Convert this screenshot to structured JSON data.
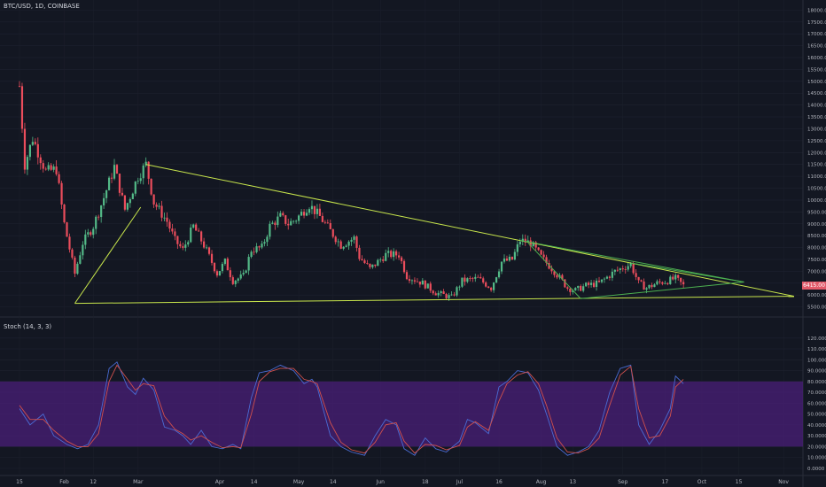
{
  "header": {
    "symbol": "BTC/USD, 1D, COINBASE"
  },
  "price_tag": "6415.00",
  "stoch_panel": {
    "title": "Stoch (14, 3, 3)"
  },
  "colors": {
    "background": "#131722",
    "up": "#53b987",
    "down": "#eb4d5c",
    "trendline": "#c8e64c",
    "trendline_green": "#4caf50",
    "band": "#4a1f78",
    "k_line": "#4a6cd4",
    "d_line": "#d0504d"
  },
  "chart_data": [
    {
      "type": "candlestick",
      "title": "BTC/USD, 1D, COINBASE",
      "y_ticks": [
        "18000.00",
        "17500.00",
        "17000.00",
        "16500.00",
        "16000.00",
        "15500.00",
        "15000.00",
        "14500.00",
        "14000.00",
        "13500.00",
        "13000.00",
        "12500.00",
        "12000.00",
        "11500.00",
        "11000.00",
        "10500.00",
        "10000.00",
        "9500.00",
        "9000.00",
        "8500.00",
        "8000.00",
        "7500.00",
        "7000.00",
        "6500.00",
        "6000.00",
        "5500.00"
      ],
      "ylim": [
        5300,
        18200
      ],
      "x_ticks": [
        "15",
        "Feb",
        "12",
        "Mar",
        "Apr",
        "14",
        "May",
        "14",
        "Jun",
        "18",
        "Jul",
        "16",
        "Aug",
        "13",
        "Sep",
        "17",
        "Oct",
        "15",
        "Nov"
      ],
      "close_path": [
        [
          "2018-01-15",
          14800
        ],
        [
          "2018-01-17",
          11500
        ],
        [
          "2018-01-20",
          12600
        ],
        [
          "2018-01-25",
          11200
        ],
        [
          "2018-01-29",
          11300
        ],
        [
          "2018-02-01",
          9000
        ],
        [
          "2018-02-05",
          6900
        ],
        [
          "2018-02-08",
          8200
        ],
        [
          "2018-02-12",
          8900
        ],
        [
          "2018-02-16",
          10100
        ],
        [
          "2018-02-20",
          11400
        ],
        [
          "2018-02-24",
          9600
        ],
        [
          "2018-03-01",
          11000
        ],
        [
          "2018-03-04",
          11500
        ],
        [
          "2018-03-07",
          9900
        ],
        [
          "2018-03-12",
          9100
        ],
        [
          "2018-03-15",
          8300
        ],
        [
          "2018-03-18",
          7900
        ],
        [
          "2018-03-22",
          8900
        ],
        [
          "2018-03-26",
          8100
        ],
        [
          "2018-03-31",
          6900
        ],
        [
          "2018-04-03",
          7400
        ],
        [
          "2018-04-06",
          6600
        ],
        [
          "2018-04-10",
          6800
        ],
        [
          "2018-04-13",
          7900
        ],
        [
          "2018-04-17",
          8000
        ],
        [
          "2018-04-20",
          8900
        ],
        [
          "2018-04-24",
          9300
        ],
        [
          "2018-04-27",
          9000
        ],
        [
          "2018-04-30",
          9200
        ],
        [
          "2018-05-05",
          9800
        ],
        [
          "2018-05-09",
          9300
        ],
        [
          "2018-05-13",
          8700
        ],
        [
          "2018-05-17",
          8100
        ],
        [
          "2018-05-22",
          8400
        ],
        [
          "2018-05-24",
          7600
        ],
        [
          "2018-05-28",
          7100
        ],
        [
          "2018-06-03",
          7700
        ],
        [
          "2018-06-08",
          7700
        ],
        [
          "2018-06-11",
          6800
        ],
        [
          "2018-06-17",
          6500
        ],
        [
          "2018-06-22",
          6100
        ],
        [
          "2018-06-28",
          5900
        ],
        [
          "2018-07-02",
          6600
        ],
        [
          "2018-07-08",
          6700
        ],
        [
          "2018-07-13",
          6300
        ],
        [
          "2018-07-17",
          7400
        ],
        [
          "2018-07-21",
          7500
        ],
        [
          "2018-07-24",
          8300
        ],
        [
          "2018-07-28",
          8200
        ],
        [
          "2018-08-01",
          7600
        ],
        [
          "2018-08-06",
          7000
        ],
        [
          "2018-08-11",
          6300
        ],
        [
          "2018-08-14",
          6200
        ],
        [
          "2018-08-18",
          6400
        ],
        [
          "2018-08-23",
          6500
        ],
        [
          "2018-08-29",
          7000
        ],
        [
          "2018-09-04",
          7300
        ],
        [
          "2018-09-07",
          6500
        ],
        [
          "2018-09-10",
          6300
        ],
        [
          "2018-09-14",
          6500
        ],
        [
          "2018-09-18",
          6600
        ],
        [
          "2018-09-21",
          6700
        ],
        [
          "2018-09-23",
          6500
        ],
        [
          "2018-09-24",
          6400
        ]
      ],
      "trendlines": [
        {
          "from": [
            "2018-02-05",
            5650
          ],
          "to": [
            "2018-11-05",
            5950
          ]
        },
        {
          "from": [
            "2018-02-05",
            5650
          ],
          "to": [
            "2018-03-02",
            9700
          ]
        },
        {
          "from": [
            "2018-03-04",
            11500
          ],
          "to": [
            "2018-11-05",
            5950
          ]
        },
        {
          "from": [
            "2018-07-24",
            8300
          ],
          "to": [
            "2018-10-17",
            6550
          ]
        },
        {
          "from": [
            "2018-09-04",
            7350
          ],
          "to": [
            "2018-10-17",
            6550
          ]
        },
        {
          "from": [
            "2018-08-16",
            5850
          ],
          "to": [
            "2018-10-17",
            6550
          ]
        },
        {
          "from": [
            "2018-07-27",
            8200
          ],
          "to": [
            "2018-08-16",
            5850
          ]
        }
      ]
    },
    {
      "type": "line",
      "title": "Stoch (14, 3, 3)",
      "y_ticks": [
        "120.0000",
        "110.0000",
        "100.0000",
        "90.0000",
        "80.0000",
        "70.0000",
        "60.0000",
        "50.0000",
        "40.0000",
        "30.0000",
        "20.0000",
        "10.0000",
        "0.0000"
      ],
      "ylim": [
        -5,
        128
      ],
      "band": [
        20,
        80
      ],
      "series": [
        {
          "key": "k",
          "values": [
            [
              "2018-01-15",
              55
            ],
            [
              "2018-01-19",
              40
            ],
            [
              "2018-01-24",
              50
            ],
            [
              "2018-01-28",
              30
            ],
            [
              "2018-02-02",
              22
            ],
            [
              "2018-02-06",
              18
            ],
            [
              "2018-02-10",
              22
            ],
            [
              "2018-02-14",
              40
            ],
            [
              "2018-02-18",
              92
            ],
            [
              "2018-02-21",
              98
            ],
            [
              "2018-02-25",
              75
            ],
            [
              "2018-02-28",
              68
            ],
            [
              "2018-03-03",
              83
            ],
            [
              "2018-03-07",
              72
            ],
            [
              "2018-03-11",
              38
            ],
            [
              "2018-03-15",
              35
            ],
            [
              "2018-03-18",
              30
            ],
            [
              "2018-03-21",
              22
            ],
            [
              "2018-03-25",
              35
            ],
            [
              "2018-03-29",
              20
            ],
            [
              "2018-04-02",
              18
            ],
            [
              "2018-04-06",
              22
            ],
            [
              "2018-04-09",
              18
            ],
            [
              "2018-04-13",
              65
            ],
            [
              "2018-04-16",
              88
            ],
            [
              "2018-04-20",
              90
            ],
            [
              "2018-04-24",
              95
            ],
            [
              "2018-04-29",
              90
            ],
            [
              "2018-05-03",
              78
            ],
            [
              "2018-05-06",
              82
            ],
            [
              "2018-05-08",
              75
            ],
            [
              "2018-05-13",
              30
            ],
            [
              "2018-05-17",
              20
            ],
            [
              "2018-05-21",
              15
            ],
            [
              "2018-05-26",
              12
            ],
            [
              "2018-05-30",
              30
            ],
            [
              "2018-06-03",
              45
            ],
            [
              "2018-06-07",
              40
            ],
            [
              "2018-06-10",
              18
            ],
            [
              "2018-06-14",
              12
            ],
            [
              "2018-06-18",
              28
            ],
            [
              "2018-06-22",
              18
            ],
            [
              "2018-06-26",
              15
            ],
            [
              "2018-07-01",
              25
            ],
            [
              "2018-07-04",
              45
            ],
            [
              "2018-07-07",
              42
            ],
            [
              "2018-07-12",
              32
            ],
            [
              "2018-07-16",
              75
            ],
            [
              "2018-07-19",
              80
            ],
            [
              "2018-07-23",
              90
            ],
            [
              "2018-07-27",
              88
            ],
            [
              "2018-07-31",
              72
            ],
            [
              "2018-08-03",
              50
            ],
            [
              "2018-08-07",
              20
            ],
            [
              "2018-08-11",
              12
            ],
            [
              "2018-08-15",
              15
            ],
            [
              "2018-08-19",
              20
            ],
            [
              "2018-08-23",
              35
            ],
            [
              "2018-08-27",
              70
            ],
            [
              "2018-08-31",
              92
            ],
            [
              "2018-09-04",
              95
            ],
            [
              "2018-09-07",
              40
            ],
            [
              "2018-09-11",
              22
            ],
            [
              "2018-09-15",
              35
            ],
            [
              "2018-09-19",
              55
            ],
            [
              "2018-09-21",
              85
            ],
            [
              "2018-09-24",
              78
            ]
          ]
        },
        {
          "key": "d",
          "values": [
            [
              "2018-01-15",
              58
            ],
            [
              "2018-01-19",
              45
            ],
            [
              "2018-01-24",
              45
            ],
            [
              "2018-01-28",
              35
            ],
            [
              "2018-02-02",
              25
            ],
            [
              "2018-02-06",
              20
            ],
            [
              "2018-02-10",
              20
            ],
            [
              "2018-02-14",
              32
            ],
            [
              "2018-02-18",
              80
            ],
            [
              "2018-02-21",
              95
            ],
            [
              "2018-02-25",
              82
            ],
            [
              "2018-02-28",
              72
            ],
            [
              "2018-03-03",
              78
            ],
            [
              "2018-03-07",
              76
            ],
            [
              "2018-03-11",
              48
            ],
            [
              "2018-03-15",
              36
            ],
            [
              "2018-03-18",
              32
            ],
            [
              "2018-03-21",
              26
            ],
            [
              "2018-03-25",
              30
            ],
            [
              "2018-03-29",
              24
            ],
            [
              "2018-04-02",
              19
            ],
            [
              "2018-04-06",
              20
            ],
            [
              "2018-04-09",
              19
            ],
            [
              "2018-04-13",
              50
            ],
            [
              "2018-04-16",
              80
            ],
            [
              "2018-04-20",
              89
            ],
            [
              "2018-04-24",
              92
            ],
            [
              "2018-04-29",
              92
            ],
            [
              "2018-05-03",
              82
            ],
            [
              "2018-05-06",
              80
            ],
            [
              "2018-05-08",
              78
            ],
            [
              "2018-05-13",
              42
            ],
            [
              "2018-05-17",
              24
            ],
            [
              "2018-05-21",
              17
            ],
            [
              "2018-05-26",
              14
            ],
            [
              "2018-05-30",
              24
            ],
            [
              "2018-06-03",
              40
            ],
            [
              "2018-06-07",
              42
            ],
            [
              "2018-06-10",
              25
            ],
            [
              "2018-06-14",
              14
            ],
            [
              "2018-06-18",
              22
            ],
            [
              "2018-06-22",
              21
            ],
            [
              "2018-06-26",
              17
            ],
            [
              "2018-07-01",
              21
            ],
            [
              "2018-07-04",
              38
            ],
            [
              "2018-07-07",
              43
            ],
            [
              "2018-07-12",
              35
            ],
            [
              "2018-07-16",
              62
            ],
            [
              "2018-07-19",
              78
            ],
            [
              "2018-07-23",
              86
            ],
            [
              "2018-07-27",
              89
            ],
            [
              "2018-07-31",
              78
            ],
            [
              "2018-08-03",
              58
            ],
            [
              "2018-08-07",
              28
            ],
            [
              "2018-08-11",
              15
            ],
            [
              "2018-08-15",
              14
            ],
            [
              "2018-08-19",
              18
            ],
            [
              "2018-08-23",
              28
            ],
            [
              "2018-08-27",
              58
            ],
            [
              "2018-08-31",
              86
            ],
            [
              "2018-09-04",
              94
            ],
            [
              "2018-09-07",
              55
            ],
            [
              "2018-09-11",
              28
            ],
            [
              "2018-09-15",
              30
            ],
            [
              "2018-09-19",
              48
            ],
            [
              "2018-09-21",
              75
            ],
            [
              "2018-09-24",
              82
            ]
          ]
        }
      ]
    }
  ]
}
